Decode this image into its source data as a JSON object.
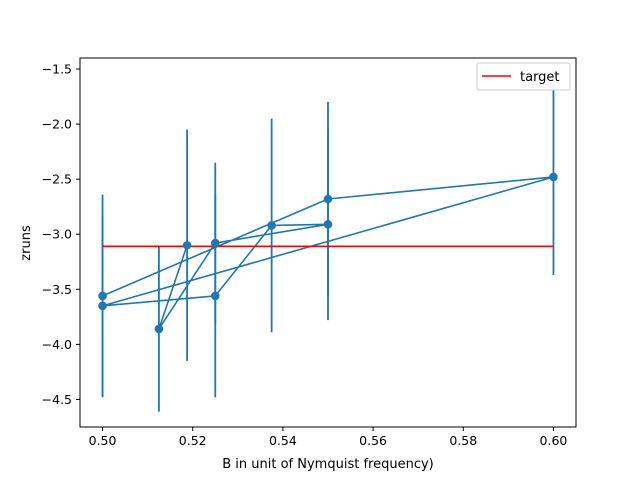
{
  "chart_data": {
    "type": "line",
    "title": "",
    "xlabel": "B in unit of Nymquist frequency)",
    "ylabel": "zruns",
    "xlim": [
      0.495,
      0.605
    ],
    "ylim": [
      -4.75,
      -1.4
    ],
    "xticks": [
      0.5,
      0.52,
      0.54,
      0.56,
      0.58,
      0.6
    ],
    "xtick_labels": [
      "0.50",
      "0.52",
      "0.54",
      "0.56",
      "0.58",
      "0.60"
    ],
    "yticks": [
      -4.5,
      -4.0,
      -3.5,
      -3.0,
      -2.5,
      -2.0,
      -1.5
    ],
    "ytick_labels": [
      "−4.5",
      "−4.0",
      "−3.5",
      "−3.0",
      "−2.5",
      "−2.0",
      "−1.5"
    ],
    "grid": false,
    "legend_position": "top-right",
    "series": [
      {
        "name": "",
        "color": "#1f77b4",
        "marker": "circle",
        "points": [
          {
            "x": 0.5,
            "y": -3.56,
            "err": 0.92
          },
          {
            "x": 0.55,
            "y": -2.68,
            "err": 0.88
          },
          {
            "x": 0.6,
            "y": -2.48,
            "err": 0.89
          },
          {
            "x": 0.5,
            "y": -3.65,
            "err": 0.82
          },
          {
            "x": 0.525,
            "y": -3.56,
            "err": 0.92
          },
          {
            "x": 0.5375,
            "y": -2.92,
            "err": 0.97
          },
          {
            "x": 0.55,
            "y": -2.91,
            "err": 0.87
          },
          {
            "x": 0.525,
            "y": -3.08,
            "err": 0.73
          },
          {
            "x": 0.5125,
            "y": -3.86,
            "err": 0.75
          },
          {
            "x": 0.51875,
            "y": -3.1,
            "err": 1.05
          }
        ]
      }
    ],
    "target": {
      "name": "target",
      "color": "#ff0000",
      "y": -3.11,
      "x_range": [
        0.5,
        0.6
      ]
    }
  }
}
